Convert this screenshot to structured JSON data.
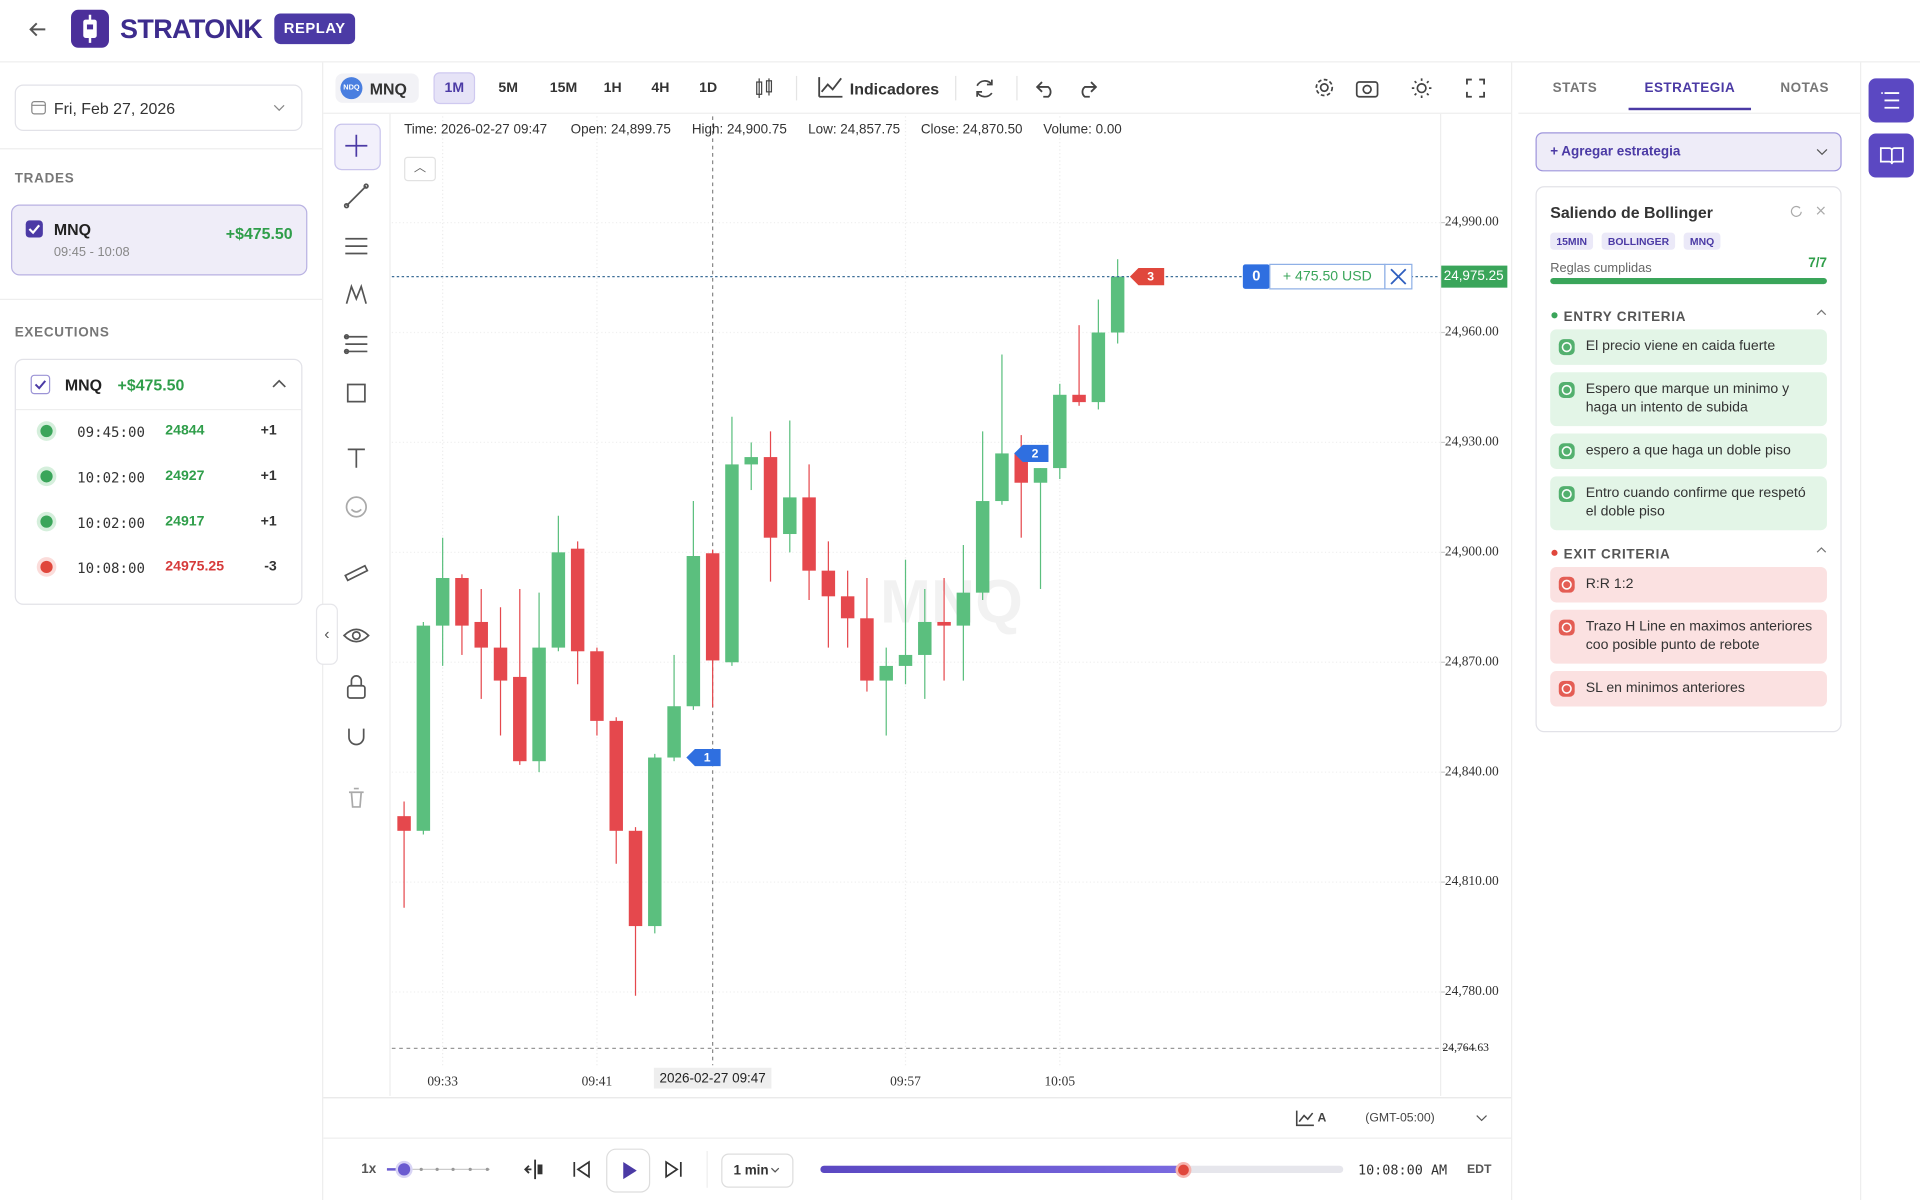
{
  "header": {
    "brand": "STRATONK",
    "badge": "REPLAY"
  },
  "sidebar": {
    "date": "Fri, Feb 27, 2026",
    "trades_title": "TRADES",
    "trade": {
      "symbol": "MNQ",
      "pnl": "+$475.50",
      "time": "09:45 - 10:08"
    },
    "executions_title": "EXECUTIONS",
    "execution_group": {
      "symbol": "MNQ",
      "pnl": "+$475.50"
    },
    "executions": [
      {
        "time": "09:45:00",
        "price": 24844,
        "qty": "+1"
      },
      {
        "time": "10:02:00",
        "price": 24927,
        "qty": "+1"
      },
      {
        "time": "10:02:00",
        "price": 24917,
        "qty": "+1"
      },
      {
        "time": "10:08:00",
        "price": 24975.25,
        "qty": "-3"
      }
    ]
  },
  "toolbar": {
    "symbol_icon": "NDQ",
    "symbol": "MNQ",
    "timeframes": [
      "1M",
      "5M",
      "15M",
      "1H",
      "4H",
      "1D"
    ],
    "active_timeframe": 0,
    "indicators": "Indicadores"
  },
  "chart_data": {
    "type": "candlestick",
    "watermark": "MNQ",
    "info": [
      "Time: 2026-02-27 09:47",
      "Open: 24,899.75",
      "High: 24,900.75",
      "Low: 24,857.75",
      "Close: 24,870.50",
      "Volume: 0.00"
    ],
    "crosshair_label": "2026-02-27 09:47",
    "categories": [
      null,
      null,
      "09:33",
      null,
      null,
      null,
      null,
      null,
      null,
      null,
      "09:41",
      null,
      null,
      null,
      null,
      null,
      null,
      null,
      null,
      null,
      null,
      null,
      null,
      null,
      null,
      null,
      "09:57",
      null,
      null,
      null,
      null,
      null,
      null,
      null,
      "10:05",
      null,
      null,
      null
    ],
    "open": [
      24828,
      24824,
      24880,
      24893,
      24881,
      24874,
      24866,
      24843,
      24874,
      24901,
      24873,
      24854,
      24824,
      24798,
      24844,
      24858,
      24899.75,
      24870,
      24924,
      24926,
      24905,
      24915,
      24895,
      24888,
      24882,
      24865,
      24869,
      24872,
      24881,
      24880,
      24889,
      24914,
      24927,
      24919,
      24923,
      24943,
      24941,
      24960
    ],
    "high": [
      24832,
      24881,
      24904,
      24894,
      24890,
      24885,
      24890,
      24889,
      24910,
      24903,
      24874,
      24855,
      24825,
      24845,
      24872,
      24914,
      24900.75,
      24937,
      24930,
      24933,
      24936,
      24924,
      24903,
      24895,
      24893,
      24874,
      24898,
      24890,
      24893,
      24902,
      24933,
      24954,
      24932,
      24923,
      24946,
      24962,
      24969,
      24980
    ],
    "low": [
      24803,
      24823,
      24869,
      24872,
      24860,
      24850,
      24842,
      24840,
      24873,
      24864,
      24850,
      24815,
      24779,
      24796,
      24843,
      24857,
      24857.75,
      24869,
      24917,
      24892,
      24900,
      24887,
      24874,
      24874,
      24862,
      24850,
      24864,
      24860,
      24865,
      24865,
      24887,
      24913,
      24904,
      24890,
      24920,
      24940,
      24939,
      24957
    ],
    "close": [
      24824,
      24880,
      24893,
      24880,
      24874,
      24865,
      24843,
      24874,
      24900,
      24873,
      24854,
      24824,
      24798,
      24844,
      24858,
      24899,
      24870.5,
      24924,
      24926,
      24904,
      24915,
      24895,
      24888,
      24882,
      24865,
      24869,
      24872,
      24881,
      24880,
      24889,
      24914,
      24927,
      24919,
      24923,
      24943,
      24941,
      24960,
      24975.25
    ],
    "up_color": "#5bbf7e",
    "down_color": "#e5484d",
    "ylim": [
      24760,
      25019
    ],
    "yticks": [
      {
        "value": 24780,
        "label": "24,780.00"
      },
      {
        "value": 24810,
        "label": "24,810.00"
      },
      {
        "value": 24840,
        "label": "24,840.00"
      },
      {
        "value": 24870,
        "label": "24,870.00"
      },
      {
        "value": 24900,
        "label": "24,900.00"
      },
      {
        "value": 24930,
        "label": "24,930.00"
      },
      {
        "value": 24960,
        "label": "24,960.00"
      },
      {
        "value": 24990,
        "label": "24,990.00"
      }
    ],
    "grid": true,
    "last_price": {
      "value": 24975.25,
      "label": "24,975.25"
    },
    "low_line": {
      "value": 24764.63,
      "label": "24,764.63"
    },
    "markers": [
      "1",
      "2",
      "3"
    ],
    "position": {
      "count": "0",
      "pnl": "+ 475.50 USD"
    }
  },
  "bottom_bar": {
    "mode": "A",
    "timezone": "(GMT-05:00)"
  },
  "replay": {
    "speed": "1x",
    "interval": "1 min",
    "clock": "10:08:00 AM",
    "zone": "EDT"
  },
  "right_panel": {
    "tabs": [
      "STATS",
      "ESTRATEGIA",
      "NOTAS"
    ],
    "active_tab": 1,
    "add_strategy": "+ Agregar estrategia",
    "strategy": {
      "title": "Saliendo de Bollinger",
      "tags": [
        "15MIN",
        "BOLLINGER",
        "MNQ"
      ],
      "rules_label": "Reglas cumplidas",
      "rules_count": "7/7",
      "entry_title": "ENTRY CRITERIA",
      "entry": [
        "El precio viene en caida fuerte",
        "Espero que marque un minimo y haga un intento de subida",
        "espero a que haga un doble piso",
        "Entro cuando confirme que respetó el doble piso"
      ],
      "exit_title": "EXIT CRITERIA",
      "exit": [
        "R:R 1:2",
        "Trazo H Line en maximos anteriores coo posible punto de rebote",
        "SL en minimos anteriores"
      ]
    }
  }
}
